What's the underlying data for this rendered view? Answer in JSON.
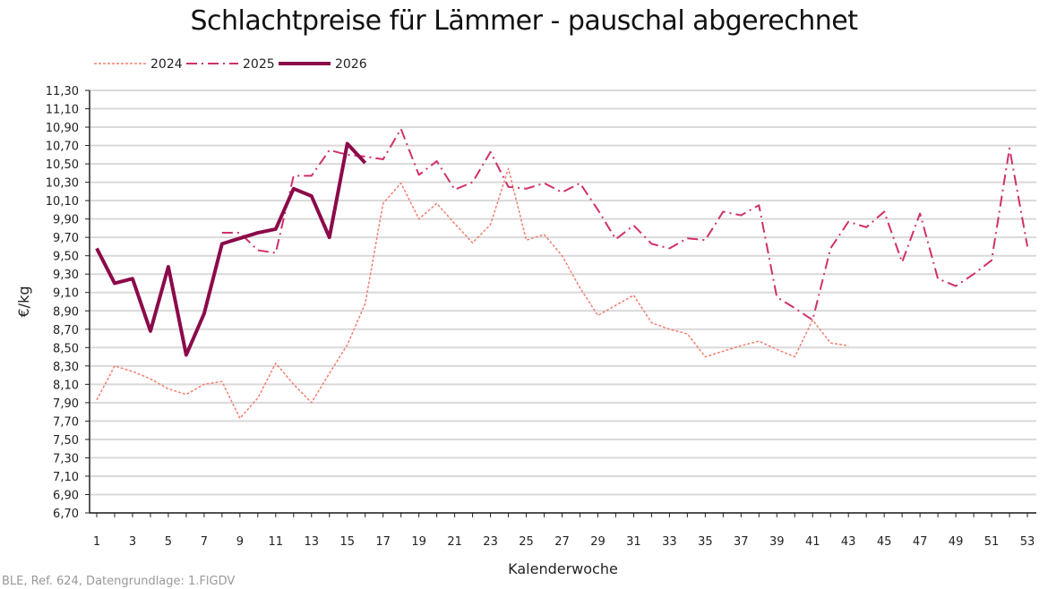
{
  "chart_data": {
    "type": "line",
    "title": "Schlachtpreise für Lämmer - pauschal abgerechnet",
    "xlabel": "Kalenderwoche",
    "ylabel": "€/kg",
    "xlim": [
      1,
      53
    ],
    "ylim": [
      6.7,
      11.3
    ],
    "ystep": 0.2,
    "x_tick_labels": [
      "1",
      "3",
      "5",
      "7",
      "9",
      "11",
      "13",
      "15",
      "17",
      "19",
      "21",
      "23",
      "25",
      "27",
      "29",
      "31",
      "33",
      "35",
      "37",
      "39",
      "41",
      "43",
      "45",
      "47",
      "49",
      "51",
      "53"
    ],
    "grid": true,
    "legend": "top-left",
    "series": [
      {
        "name": "2024",
        "color": "#f08070",
        "style": "dotted",
        "start_week": 1,
        "values": [
          7.93,
          8.3,
          8.24,
          8.16,
          8.05,
          7.99,
          8.1,
          8.13,
          7.73,
          7.95,
          8.33,
          8.1,
          7.9,
          8.22,
          8.53,
          8.98,
          10.07,
          10.29,
          9.9,
          10.07,
          9.85,
          9.64,
          9.84,
          10.45,
          9.67,
          9.73,
          9.5,
          9.15,
          8.85,
          8.96,
          9.07,
          8.77,
          8.7,
          8.65,
          8.4,
          8.46,
          8.52,
          8.57,
          8.48,
          8.4,
          8.8,
          8.55,
          8.52
        ]
      },
      {
        "name": "2025",
        "color": "#d0306a",
        "style": "dash-dot",
        "start_week": 8,
        "values": [
          9.75,
          9.75,
          9.56,
          9.53,
          10.37,
          10.37,
          10.65,
          10.6,
          10.58,
          10.55,
          10.88,
          10.38,
          10.53,
          10.22,
          10.3,
          10.63,
          10.25,
          10.23,
          10.29,
          10.19,
          10.29,
          10.0,
          9.68,
          9.83,
          9.63,
          9.58,
          9.69,
          9.67,
          9.98,
          9.94,
          10.05,
          9.05,
          8.93,
          8.8,
          9.58,
          9.87,
          9.81,
          9.98,
          9.43,
          9.96,
          9.25,
          9.17,
          9.3,
          9.45,
          10.67,
          9.6
        ]
      },
      {
        "name": "2026",
        "color": "#8b0a4a",
        "style": "solid",
        "start_week": 1,
        "values": [
          9.58,
          9.2,
          9.25,
          8.68,
          9.38,
          8.42,
          8.87,
          9.63,
          9.69,
          9.75,
          9.79,
          10.23,
          10.15,
          9.7,
          10.72,
          10.51
        ]
      }
    ]
  },
  "source": "BLE, Ref. 624, Datengrundlage: 1.FlGDV"
}
